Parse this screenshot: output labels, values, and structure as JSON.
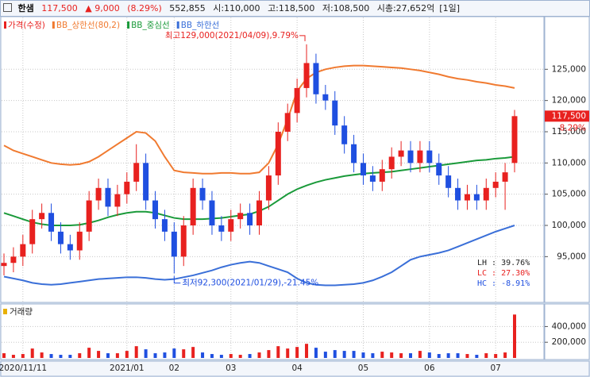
{
  "header": {
    "name": "한샘",
    "price": "117,500",
    "change": "▲ 9,000",
    "change_pct": "(8.29%)",
    "volume": "552,855",
    "open": "시:110,000",
    "high": "고:118,500",
    "low": "저:108,500",
    "market_cap": "시총:27,652억",
    "period": "[1일]"
  },
  "chart_data": [
    {
      "type": "candlestick",
      "categories": [
        null,
        null,
        "2020/11/11",
        null,
        null,
        null,
        null,
        null,
        null,
        null,
        null,
        null,
        null,
        "2021/01",
        null,
        null,
        null,
        null,
        "02",
        null,
        null,
        null,
        null,
        null,
        "03",
        null,
        null,
        null,
        null,
        null,
        null,
        "04",
        null,
        null,
        null,
        null,
        null,
        null,
        "05",
        null,
        null,
        null,
        null,
        null,
        null,
        "06",
        null,
        null,
        null,
        null,
        null,
        null,
        "07",
        null,
        null
      ],
      "series": [
        {
          "name": "가격(수정)",
          "color": "#e8211f",
          "down_color": "#1f4fe0",
          "open": [
            93500,
            94000,
            95000,
            97000,
            101000,
            102000,
            99000,
            97000,
            96000,
            99000,
            104000,
            106000,
            103000,
            105000,
            107000,
            110000,
            104000,
            101000,
            99000,
            95000,
            100000,
            106000,
            104000,
            100000,
            99000,
            101000,
            102000,
            100000,
            104000,
            108000,
            115000,
            118000,
            122000,
            126000,
            121000,
            120000,
            116000,
            113000,
            110000,
            108000,
            107000,
            109000,
            111000,
            112000,
            110000,
            112000,
            110000,
            108000,
            106000,
            104000,
            105000,
            104000,
            106000,
            107000,
            110000
          ],
          "high": [
            95500,
            96500,
            98500,
            102500,
            103500,
            103500,
            100500,
            98500,
            100500,
            105500,
            107500,
            107500,
            106500,
            108500,
            113000,
            111500,
            105500,
            102500,
            100500,
            101500,
            107500,
            107500,
            105500,
            101500,
            102500,
            103500,
            103500,
            105500,
            109500,
            116500,
            119500,
            123500,
            129000,
            127500,
            122500,
            121500,
            117500,
            114500,
            111500,
            109500,
            110500,
            112500,
            113500,
            113500,
            113500,
            113500,
            111500,
            109500,
            107500,
            106500,
            106500,
            107500,
            108500,
            110000,
            118500
          ],
          "low": [
            92000,
            92500,
            93500,
            95500,
            99500,
            97500,
            95500,
            94500,
            94500,
            97500,
            102500,
            101500,
            101500,
            103500,
            105500,
            102500,
            99500,
            97500,
            92300,
            93500,
            98500,
            102500,
            98500,
            97500,
            97500,
            99500,
            98500,
            98500,
            102500,
            106500,
            113500,
            116500,
            120500,
            119500,
            118500,
            114500,
            111500,
            108500,
            106500,
            105500,
            105500,
            107500,
            109500,
            108500,
            108500,
            108500,
            106500,
            104500,
            102500,
            102500,
            102500,
            102500,
            104500,
            102500,
            108500
          ],
          "close": [
            94000,
            95000,
            97000,
            101000,
            102000,
            99000,
            97000,
            96000,
            99000,
            104000,
            106000,
            103000,
            105000,
            107000,
            110000,
            104000,
            101000,
            99000,
            95000,
            100000,
            106000,
            104000,
            100000,
            99000,
            101000,
            102000,
            100000,
            104000,
            108000,
            115000,
            118000,
            122000,
            126000,
            121000,
            120000,
            116000,
            113000,
            110000,
            108000,
            107000,
            109000,
            111000,
            112000,
            110000,
            112000,
            110000,
            108000,
            106000,
            104000,
            105000,
            104000,
            106000,
            107000,
            108500,
            117500
          ]
        },
        {
          "name": "BB_상한선(80,2)",
          "color": "#f07a30",
          "values": [
            112800,
            112000,
            111500,
            111000,
            110500,
            110000,
            109800,
            109700,
            109800,
            110200,
            111000,
            112000,
            113000,
            114000,
            115000,
            114800,
            113500,
            111000,
            108800,
            108500,
            108400,
            108300,
            108300,
            108400,
            108400,
            108300,
            108300,
            108500,
            110000,
            113000,
            117000,
            121500,
            123500,
            124500,
            125000,
            125300,
            125500,
            125600,
            125600,
            125500,
            125400,
            125300,
            125200,
            125000,
            124800,
            124500,
            124200,
            123800,
            123500,
            123300,
            123000,
            122800,
            122500,
            122300,
            122000
          ]
        },
        {
          "name": "BB_중심선",
          "color": "#1a9a3a",
          "values": [
            102000,
            101500,
            101000,
            100500,
            100200,
            100000,
            100000,
            100000,
            100100,
            100400,
            100800,
            101300,
            101700,
            102000,
            102200,
            102200,
            102000,
            101600,
            101200,
            101000,
            101000,
            101000,
            101100,
            101200,
            101400,
            101600,
            101800,
            102300,
            103000,
            104000,
            105000,
            105800,
            106400,
            106900,
            107300,
            107600,
            107900,
            108100,
            108300,
            108400,
            108500,
            108600,
            108800,
            109000,
            109200,
            109400,
            109600,
            109800,
            110000,
            110200,
            110400,
            110500,
            110700,
            110800,
            111000
          ]
        },
        {
          "name": "BB_하한선",
          "color": "#3a6fd8",
          "values": [
            91800,
            91500,
            91200,
            90800,
            90600,
            90500,
            90600,
            90800,
            91000,
            91200,
            91400,
            91500,
            91600,
            91700,
            91700,
            91600,
            91400,
            91300,
            91400,
            91700,
            92000,
            92400,
            92800,
            93300,
            93700,
            94000,
            94200,
            94000,
            93500,
            93000,
            92500,
            91500,
            90800,
            90500,
            90400,
            90400,
            90500,
            90600,
            90800,
            91200,
            91800,
            92500,
            93500,
            94500,
            95000,
            95300,
            95600,
            96000,
            96600,
            97200,
            97800,
            98400,
            99000,
            99500,
            100000
          ]
        }
      ],
      "ylim": [
        87800,
        133300
      ],
      "yticks": [
        {
          "value": 95000,
          "label": "95,000"
        },
        {
          "value": 100000,
          "label": "100,000"
        },
        {
          "value": 105000,
          "label": "105,000"
        },
        {
          "value": 110000,
          "label": "110,000"
        },
        {
          "value": 115000,
          "label": "115,000"
        },
        {
          "value": 120000,
          "label": "120,000"
        },
        {
          "value": 125000,
          "label": "125,000"
        }
      ],
      "grid": true,
      "last_label": "117,500",
      "last_pct_label": "8.29%",
      "annotations": [
        "최고129,000(2021/04/09),9.79%",
        "최저92,300(2021/01/29),-21.45%"
      ],
      "stats": [
        "LH : 39.76%",
        "LC : 27.30%",
        "HC : -8.91%"
      ]
    },
    {
      "type": "bar",
      "title": "거래량",
      "values": [
        60000,
        40000,
        50000,
        120000,
        70000,
        50000,
        40000,
        40000,
        60000,
        130000,
        90000,
        60000,
        60000,
        90000,
        150000,
        110000,
        60000,
        70000,
        120000,
        110000,
        140000,
        70000,
        50000,
        40000,
        50000,
        40000,
        50000,
        70000,
        100000,
        150000,
        120000,
        140000,
        180000,
        130000,
        80000,
        100000,
        90000,
        90000,
        70000,
        60000,
        80000,
        70000,
        60000,
        60000,
        90000,
        70000,
        50000,
        60000,
        60000,
        50000,
        40000,
        60000,
        50000,
        70000,
        552855
      ],
      "ylim": [
        0,
        667000
      ],
      "yticks": [
        {
          "value": 200000,
          "label": "200,000"
        },
        {
          "value": 400000,
          "label": "400,000"
        }
      ],
      "grid": true
    }
  ]
}
